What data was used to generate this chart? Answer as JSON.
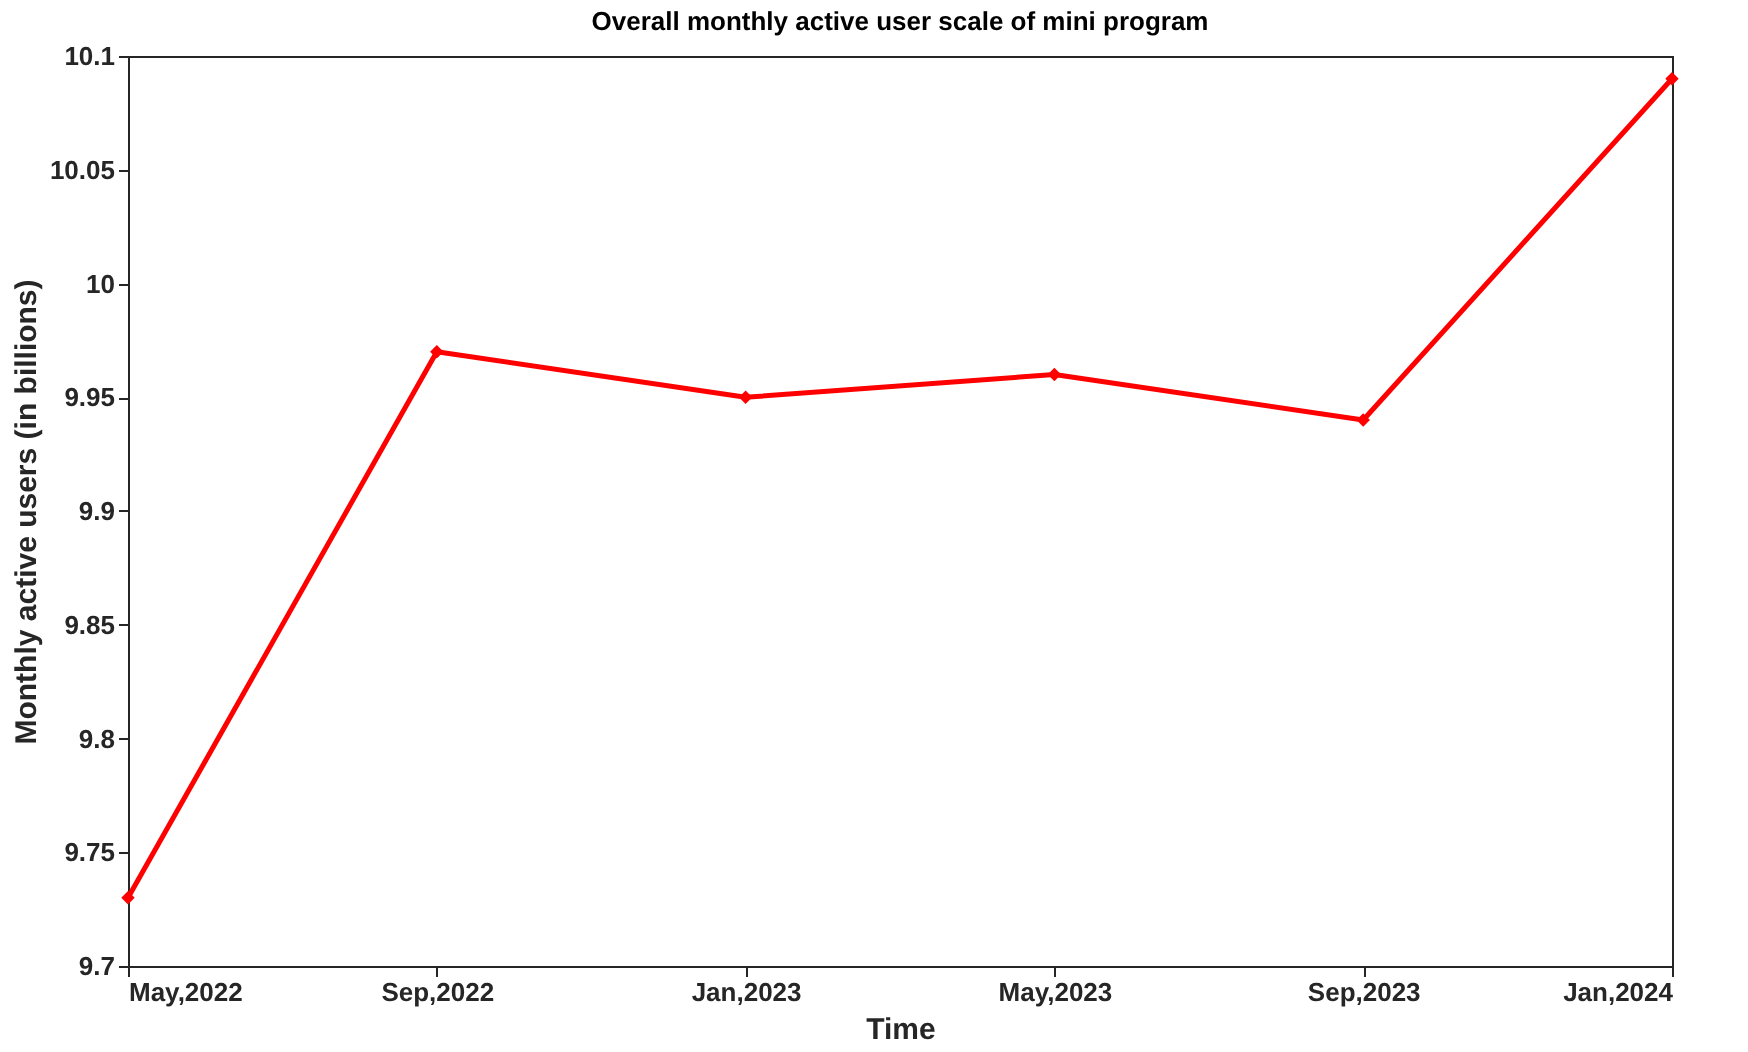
{
  "chart_data": {
    "type": "line",
    "title": "Overall monthly active user scale of mini program",
    "xlabel": "Time",
    "ylabel": "Monthly active users (in billions)",
    "categories": [
      "May,2022",
      "Sep,2022",
      "Jan,2023",
      "May,2023",
      "Sep,2023",
      "Jan,2024"
    ],
    "series": [
      {
        "color": "#ff0000",
        "values": [
          9.73,
          9.97,
          9.95,
          9.96,
          9.94,
          10.09
        ]
      }
    ],
    "ylim": [
      9.7,
      10.1
    ],
    "yticks": [
      9.7,
      9.75,
      9.8,
      9.85,
      9.9,
      9.95,
      10,
      10.05,
      10.1
    ],
    "marker": "diamond",
    "line_style": "solid"
  }
}
